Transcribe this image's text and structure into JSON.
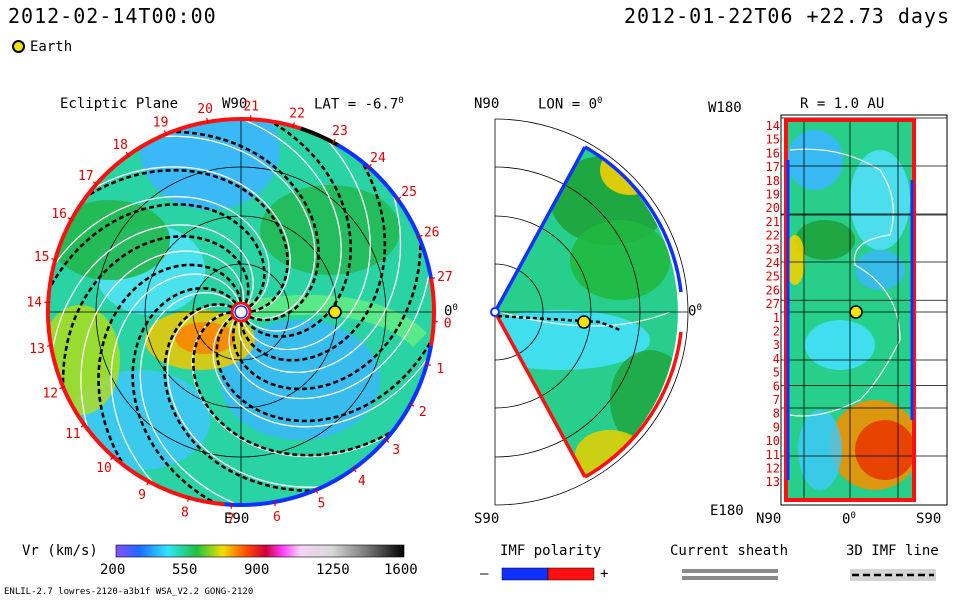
{
  "header": {
    "date_left": "2012-02-14T00:00",
    "date_right": "2012-01-22T06 +22.73 days",
    "legend_earth": "Earth"
  },
  "colors": {
    "earth_marker": "#f4e30a",
    "neg_polarity": "#1030ff",
    "pos_polarity": "#ff1010"
  },
  "chart_data": [
    {
      "type": "heatmap",
      "title": "Ecliptic Plane",
      "labels": {
        "top": "W90",
        "bottom": "E90",
        "right": "0",
        "lat": "LAT = -6.7",
        "lat_sup": "0"
      },
      "carrington_ticks": [
        "20",
        "21",
        "22",
        "23",
        "24",
        "25",
        "26",
        "27",
        "0",
        "1",
        "2",
        "3",
        "4",
        "5",
        "6",
        "7",
        "8",
        "9",
        "10",
        "11",
        "12",
        "13",
        "14",
        "15",
        "16",
        "17",
        "18",
        "19"
      ],
      "earth": {
        "angle_deg": 0,
        "r_au": 1.0
      }
    },
    {
      "type": "heatmap",
      "title": "LON = 0",
      "labels": {
        "top": "N90",
        "bottom": "S90",
        "right": "0",
        "lon": "LON = 0",
        "lon_sup": "0"
      },
      "sector_deg": [
        -60,
        60
      ],
      "earth": {
        "lat_deg": -6.7,
        "r_au": 1.0
      }
    },
    {
      "type": "heatmap",
      "title": "R = 1.0 AU",
      "labels": {
        "top": "W180",
        "bottom": "E180",
        "x_left": "N90",
        "x_mid": "0",
        "x_mid_sup": "0",
        "x_right": "S90"
      },
      "y_ticks": [
        "14",
        "15",
        "16",
        "17",
        "18",
        "19",
        "20",
        "21",
        "22",
        "23",
        "24",
        "25",
        "26",
        "27",
        "1",
        "2",
        "3",
        "4",
        "5",
        "6",
        "7",
        "8",
        "9",
        "10",
        "11",
        "12",
        "13"
      ]
    }
  ],
  "colorbar": {
    "label": "Vr (km/s)",
    "ticks": [
      "200",
      "550",
      "900",
      "1250",
      "1600"
    ],
    "min": 200,
    "max": 1600
  },
  "imf": {
    "polarity_label": "IMF polarity",
    "minus": "–",
    "plus": "+",
    "sheath_label": "Current sheath",
    "line_label": "3D IMF line"
  },
  "footer": {
    "model": "ENLIL-2.7 lowres-2120-a3b1f WSA_V2.2 GONG-2120"
  }
}
